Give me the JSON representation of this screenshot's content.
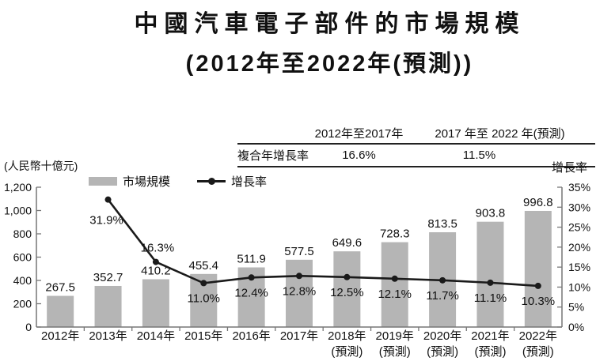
{
  "title": {
    "line1": "中國汽車電子部件的市場規模",
    "line2": "(2012年至2022年(預測))"
  },
  "cagr_table": {
    "row_label": "複合年增長率",
    "columns": [
      {
        "header": "2012年至2017年",
        "value": "16.6%"
      },
      {
        "header": "2017 年至 2022 年(預測)",
        "value": "11.5%"
      }
    ]
  },
  "axes": {
    "left_unit": "(人民幣十億元)",
    "right_unit": "增長率"
  },
  "legend": {
    "bars": "市場規模",
    "line": "增長率"
  },
  "chart_data": {
    "type": "bar+line",
    "title": "中國汽車電子部件的市場規模 (2012年至2022年(預測))",
    "categories": [
      "2012年",
      "2013年",
      "2014年",
      "2015年",
      "2016年",
      "2017年",
      "2018年",
      "2019年",
      "2020年",
      "2021年",
      "2022年"
    ],
    "category_sublabels": [
      "",
      "",
      "",
      "",
      "",
      "",
      "(預測)",
      "(預測)",
      "(預測)",
      "(預測)",
      "(預測)"
    ],
    "series": [
      {
        "name": "市場規模",
        "type": "bar",
        "axis": "left",
        "color": "#b5b5b5",
        "values": [
          267.5,
          352.7,
          410.2,
          455.4,
          511.9,
          577.5,
          649.6,
          728.3,
          813.5,
          903.8,
          996.8
        ]
      },
      {
        "name": "增長率",
        "type": "line",
        "axis": "right",
        "color": "#1a1a1a",
        "values": [
          null,
          31.9,
          16.3,
          11.0,
          12.4,
          12.8,
          12.5,
          12.1,
          11.7,
          11.1,
          10.3
        ]
      }
    ],
    "left_axis": {
      "label": "(人民幣十億元)",
      "min": 0,
      "max": 1200,
      "step": 200
    },
    "right_axis": {
      "label": "增長率",
      "min": 0,
      "max": 35,
      "step": 5,
      "suffix": "%"
    },
    "grid": false,
    "legend_position": "top",
    "value_labels": true
  }
}
